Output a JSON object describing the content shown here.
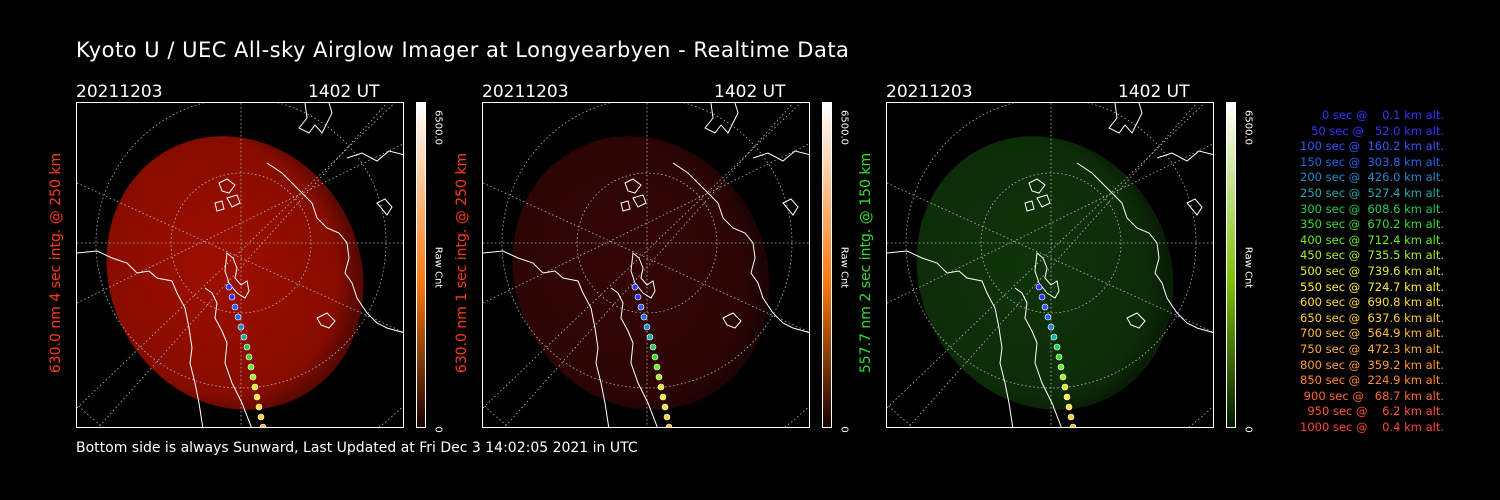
{
  "title": "Kyoto U / UEC All-sky Airglow Imager at Longyearbyen - Realtime Data",
  "footer": "Bottom side is always Sunward, Last Updated at Fri Dec  3 14:02:05 2021 in UTC",
  "panels": [
    {
      "date": "20211203",
      "time": "1402 UT",
      "side_label": "630.0 nm 4 sec intg. @ 250 km",
      "side_color": "#ff3a1a",
      "cbar_max": "6500.0",
      "cbar_unit": "Raw Cnt",
      "cbar_min": "0",
      "glow": "#b01000",
      "glow_alpha": 0.9,
      "cbar_top": "#ffffff",
      "cbar_mid": "#ff7a10",
      "cbar_bot": "#1a0000"
    },
    {
      "date": "20211203",
      "time": "1402 UT",
      "side_label": "630.0 nm 1 sec intg. @ 250 km",
      "side_color": "#ff3a1a",
      "cbar_max": "6500.0",
      "cbar_unit": "Raw Cnt",
      "cbar_min": "0",
      "glow": "#3a0606",
      "glow_alpha": 0.9,
      "cbar_top": "#ffffff",
      "cbar_mid": "#ff7a10",
      "cbar_bot": "#1a0000"
    },
    {
      "date": "20211203",
      "time": "1402 UT",
      "side_label": "557.7 nm 2 sec intg. @ 150 km",
      "side_color": "#33dd33",
      "cbar_max": "6500.0",
      "cbar_unit": "Raw Cnt",
      "cbar_min": "0",
      "glow": "#103a0a",
      "glow_alpha": 0.9,
      "cbar_top": "#ffffff",
      "cbar_mid": "#80c000",
      "cbar_bot": "#001a00"
    }
  ],
  "legend": [
    {
      "text": "   0 sec @    0.1 km alt.",
      "color": "#3333ff"
    },
    {
      "text": "  50 sec @   52.0 km alt.",
      "color": "#3333ff"
    },
    {
      "text": " 100 sec @  160.2 km alt.",
      "color": "#3355ff"
    },
    {
      "text": " 150 sec @  303.8 km alt.",
      "color": "#2266ee"
    },
    {
      "text": " 200 sec @  426.0 km alt.",
      "color": "#2288cc"
    },
    {
      "text": " 250 sec @  527.4 km alt.",
      "color": "#22aaaa"
    },
    {
      "text": " 300 sec @  608.6 km alt.",
      "color": "#22cc55"
    },
    {
      "text": " 350 sec @  670.2 km alt.",
      "color": "#33dd33"
    },
    {
      "text": " 400 sec @  712.4 km alt.",
      "color": "#66ee22"
    },
    {
      "text": " 450 sec @  735.5 km alt.",
      "color": "#aaee22"
    },
    {
      "text": " 500 sec @  739.6 km alt.",
      "color": "#ddee22"
    },
    {
      "text": " 550 sec @  724.7 km alt.",
      "color": "#ffee33"
    },
    {
      "text": " 600 sec @  690.8 km alt.",
      "color": "#ffdd33"
    },
    {
      "text": " 650 sec @  637.6 km alt.",
      "color": "#ffcc33"
    },
    {
      "text": " 700 sec @  564.9 km alt.",
      "color": "#ffbb33"
    },
    {
      "text": " 750 sec @  472.3 km alt.",
      "color": "#ffaa33"
    },
    {
      "text": " 800 sec @  359.2 km alt.",
      "color": "#ff9933"
    },
    {
      "text": " 850 sec @  224.9 km alt.",
      "color": "#ff8833"
    },
    {
      "text": " 900 sec @   68.7 km alt.",
      "color": "#ff6633"
    },
    {
      "text": " 950 sec @    6.2 km alt.",
      "color": "#ff5533"
    },
    {
      "text": "1000 sec @    0.4 km alt.",
      "color": "#ff4433"
    }
  ]
}
